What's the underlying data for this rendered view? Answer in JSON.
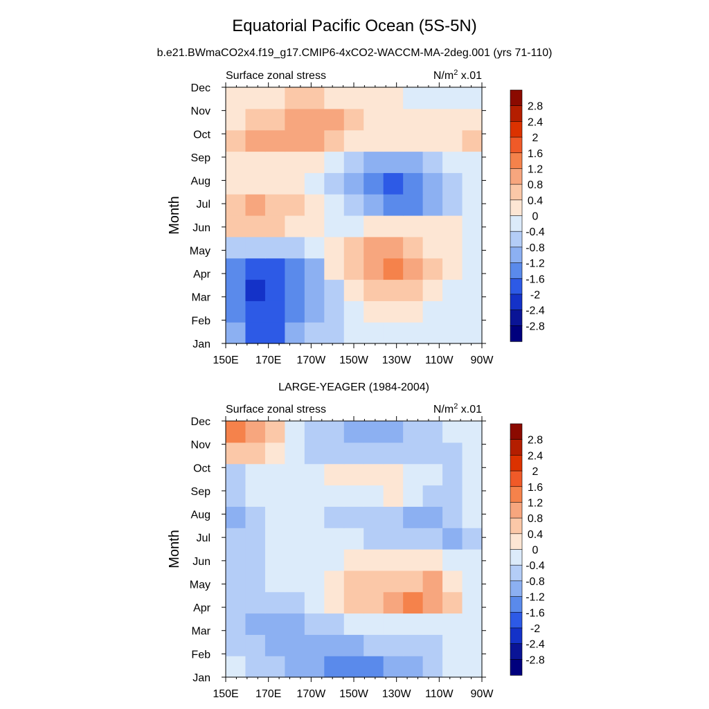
{
  "figure": {
    "title": "Equatorial Pacific Ocean (5S-5N)",
    "subtitle": "b.e21.BWmaCO2x4.f19_g17.CMIP6-4xCO2-WACCM-MA-2deg.001 (yrs 71-110)"
  },
  "colorbar": {
    "labels": [
      "2.8",
      "2.4",
      "2",
      "1.6",
      "1.2",
      "0.8",
      "0.4",
      "0",
      "-0.4",
      "-0.8",
      "-1.2",
      "-1.6",
      "-2",
      "-2.4",
      "-2.8"
    ],
    "levels": [
      2.8,
      2.4,
      2.0,
      1.6,
      1.2,
      0.8,
      0.4,
      0.0,
      -0.4,
      -0.8,
      -1.2,
      -1.6,
      -2.0,
      -2.4,
      -2.8
    ],
    "colors": [
      "#8b0a00",
      "#b41e00",
      "#dc3200",
      "#f05a28",
      "#f5824b",
      "#f7a67e",
      "#fbc8a8",
      "#fde6d4",
      "#dcebfa",
      "#b4cdf7",
      "#8cb0f2",
      "#5a8aeb",
      "#2d5ae6",
      "#1432c8",
      "#0a1496",
      "#00007d"
    ]
  },
  "chart_data": [
    {
      "type": "heatmap",
      "panel_title": "",
      "left_label": "Surface zonal stress",
      "right_label_base": "N/m",
      "right_label_exp": "2",
      "right_label_suffix": " x.01",
      "xlabel": "",
      "ylabel": "Month",
      "x_ticks": [
        "150E",
        "170E",
        "170W",
        "150W",
        "130W",
        "110W",
        "90W"
      ],
      "y_ticks": [
        "Jan",
        "Feb",
        "Mar",
        "Apr",
        "May",
        "Jun",
        "Jul",
        "Aug",
        "Sep",
        "Oct",
        "Nov",
        "Dec"
      ],
      "xlim": [
        150,
        270
      ],
      "units": "N/m^2 x.01",
      "grid": [
        [
          -0.8,
          -1.6,
          -1.6,
          -0.8,
          -0.4,
          -0.4,
          0.0,
          0.0,
          0.0,
          0.0,
          0.0,
          0.0,
          0.0
        ],
        [
          -1.2,
          -1.6,
          -1.6,
          -1.2,
          -0.8,
          -0.4,
          0.0,
          0.4,
          0.4,
          0.4,
          0.0,
          0.0,
          0.0
        ],
        [
          -1.2,
          -2.0,
          -1.6,
          -1.2,
          -0.8,
          -0.4,
          0.4,
          0.8,
          0.8,
          0.8,
          0.4,
          0.0,
          0.0
        ],
        [
          -1.2,
          -1.6,
          -1.6,
          -1.2,
          -0.8,
          0.4,
          0.8,
          1.2,
          1.6,
          1.2,
          0.8,
          0.4,
          0.0
        ],
        [
          -0.4,
          -0.4,
          -0.4,
          -0.4,
          0.0,
          0.4,
          0.8,
          1.2,
          1.2,
          0.8,
          0.4,
          0.4,
          0.0
        ],
        [
          0.8,
          0.8,
          0.8,
          0.4,
          0.4,
          0.0,
          0.0,
          0.4,
          0.4,
          0.4,
          0.4,
          0.4,
          0.0
        ],
        [
          0.8,
          1.2,
          0.8,
          0.8,
          0.4,
          0.0,
          -0.4,
          -0.8,
          -1.2,
          -1.2,
          -0.8,
          -0.4,
          0.0
        ],
        [
          0.4,
          0.4,
          0.4,
          0.4,
          0.0,
          -0.4,
          -0.8,
          -1.2,
          -1.6,
          -1.2,
          -0.8,
          -0.4,
          0.0
        ],
        [
          0.4,
          0.4,
          0.4,
          0.4,
          0.4,
          0.0,
          -0.4,
          -0.8,
          -0.8,
          -0.8,
          -0.4,
          0.0,
          0.0
        ],
        [
          0.8,
          1.2,
          1.2,
          1.2,
          1.2,
          0.8,
          0.4,
          0.4,
          0.4,
          0.4,
          0.4,
          0.4,
          0.8
        ],
        [
          0.4,
          0.8,
          0.8,
          1.2,
          1.2,
          1.2,
          0.8,
          0.4,
          0.4,
          0.4,
          0.4,
          0.4,
          0.4
        ],
        [
          0.4,
          0.4,
          0.4,
          0.8,
          0.8,
          0.4,
          0.4,
          0.4,
          0.4,
          0.0,
          0.0,
          0.0,
          0.0
        ]
      ]
    },
    {
      "type": "heatmap",
      "panel_title": "LARGE-YEAGER (1984-2004)",
      "left_label": "Surface zonal stress",
      "right_label_base": "N/m",
      "right_label_exp": "2",
      "right_label_suffix": " x.01",
      "xlabel": "",
      "ylabel": "Month",
      "x_ticks": [
        "150E",
        "170E",
        "170W",
        "150W",
        "130W",
        "110W",
        "90W"
      ],
      "y_ticks": [
        "Jan",
        "Feb",
        "Mar",
        "Apr",
        "May",
        "Jun",
        "Jul",
        "Aug",
        "Sep",
        "Oct",
        "Nov",
        "Dec"
      ],
      "xlim": [
        150,
        270
      ],
      "units": "N/m^2 x.01",
      "grid": [
        [
          0.0,
          -0.4,
          -0.4,
          -0.8,
          -0.8,
          -1.2,
          -1.2,
          -1.2,
          -0.8,
          -0.8,
          -0.4,
          0.0,
          0.0
        ],
        [
          -0.4,
          -0.4,
          -0.8,
          -0.8,
          -0.8,
          -0.8,
          -0.8,
          -0.4,
          -0.4,
          -0.4,
          -0.4,
          0.0,
          0.0
        ],
        [
          -0.4,
          -0.8,
          -0.8,
          -0.8,
          -0.4,
          -0.4,
          0.0,
          0.0,
          0.0,
          0.0,
          0.0,
          0.0,
          0.0
        ],
        [
          -0.4,
          -0.4,
          -0.4,
          -0.4,
          0.0,
          0.4,
          0.8,
          0.8,
          1.2,
          1.6,
          1.2,
          0.8,
          0.0
        ],
        [
          -0.4,
          -0.4,
          0.0,
          0.0,
          0.0,
          0.4,
          0.8,
          0.8,
          0.8,
          0.8,
          1.2,
          0.4,
          0.0
        ],
        [
          -0.4,
          -0.4,
          0.0,
          0.0,
          0.0,
          0.0,
          0.4,
          0.4,
          0.4,
          0.4,
          0.4,
          0.0,
          0.0
        ],
        [
          -0.4,
          -0.4,
          0.0,
          0.0,
          0.0,
          0.0,
          0.0,
          -0.4,
          -0.4,
          -0.4,
          -0.4,
          -0.8,
          -0.4
        ],
        [
          -0.8,
          -0.4,
          0.0,
          0.0,
          0.0,
          -0.4,
          -0.4,
          -0.4,
          -0.4,
          -0.8,
          -0.8,
          -0.4,
          0.0
        ],
        [
          -0.4,
          0.0,
          0.0,
          0.0,
          0.0,
          0.0,
          0.0,
          0.0,
          0.4,
          0.0,
          -0.4,
          -0.4,
          0.0
        ],
        [
          -0.4,
          0.0,
          0.0,
          0.0,
          0.0,
          0.4,
          0.4,
          0.4,
          0.4,
          0.0,
          0.0,
          -0.4,
          0.0
        ],
        [
          0.8,
          0.8,
          0.4,
          0.0,
          -0.4,
          -0.4,
          -0.4,
          -0.4,
          -0.4,
          -0.4,
          -0.4,
          -0.4,
          0.0
        ],
        [
          1.6,
          1.2,
          0.8,
          0.0,
          -0.4,
          -0.4,
          -0.8,
          -0.8,
          -0.8,
          -0.4,
          -0.4,
          0.0,
          0.0
        ]
      ]
    }
  ]
}
